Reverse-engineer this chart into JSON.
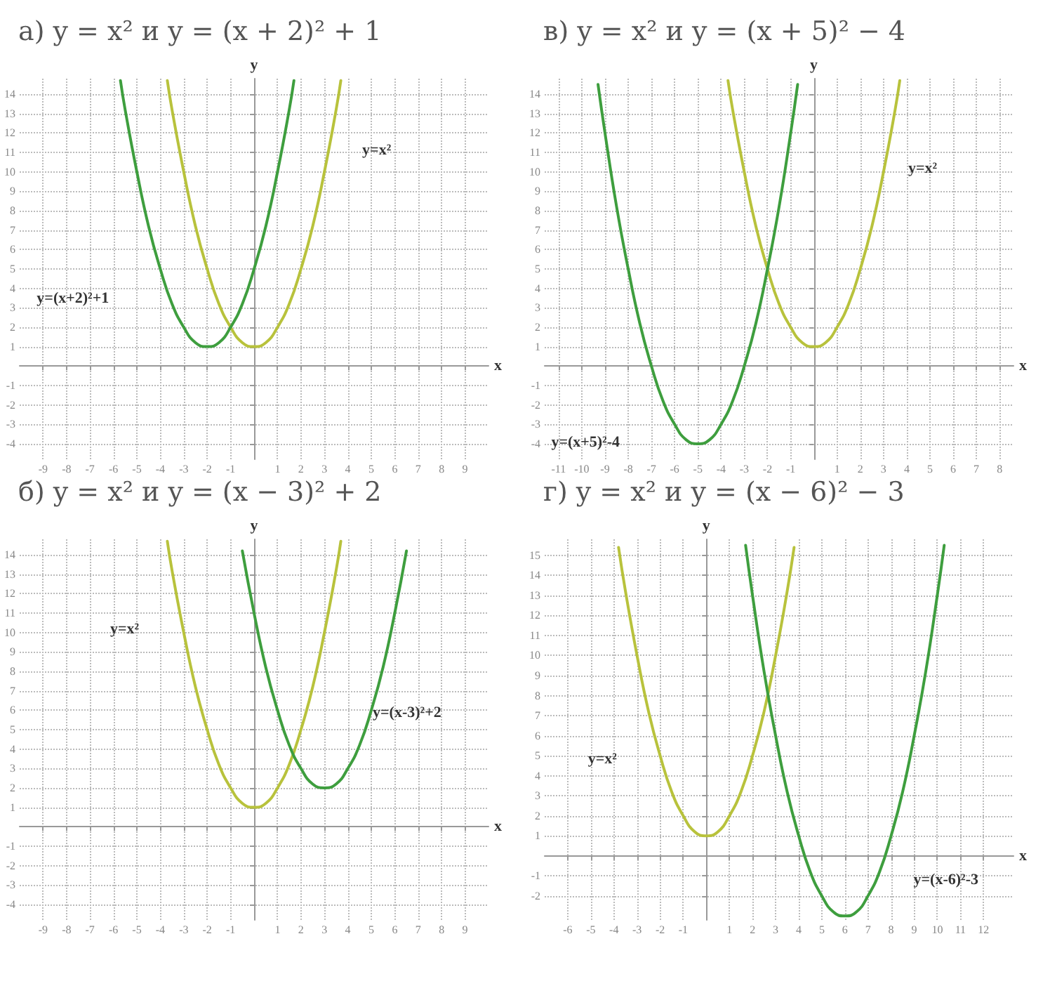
{
  "chart_data": [
    {
      "type": "line",
      "title": "а) y = x² и y = (x + 2)² + 1",
      "xlabel": "x",
      "ylabel": "y",
      "xlim": [
        -10,
        10
      ],
      "xticks": [
        -9,
        -8,
        -7,
        -6,
        -5,
        -4,
        -3,
        -2,
        -1,
        1,
        2,
        3,
        4,
        5,
        6,
        7,
        8,
        9
      ],
      "ylim": [
        -4.8,
        14.8
      ],
      "yticks": [
        -4,
        -3,
        -2,
        -1,
        1,
        2,
        3,
        4,
        5,
        6,
        7,
        8,
        9,
        10,
        11,
        12,
        13,
        14
      ],
      "grid": true,
      "marker": "none",
      "series": [
        {
          "color": "#b8c23c",
          "x": [
            -3.7,
            -3.5,
            -3,
            -2.5,
            -2,
            -1.5,
            -1,
            -0.5,
            0,
            0.5,
            1,
            1.5,
            2,
            2.5,
            3,
            3.5,
            3.7
          ],
          "values": [
            14.7,
            13.2,
            10,
            7.2,
            5,
            3.2,
            2,
            1.2,
            1,
            1.2,
            2,
            3.2,
            5,
            7.2,
            10,
            13.2,
            14.7
          ]
        },
        {
          "color": "#3e9e3e",
          "x": [
            -5.7,
            -5.5,
            -5,
            -4.5,
            -4,
            -3.5,
            -3,
            -2.5,
            -2,
            -1.5,
            -1,
            -0.5,
            0,
            0.5,
            1,
            1.5,
            1.7
          ],
          "values": [
            14.7,
            13.2,
            10,
            7.2,
            5,
            3.2,
            2,
            1.2,
            1,
            1.2,
            2,
            3.2,
            5,
            7.2,
            10,
            13.2,
            14.7
          ]
        }
      ],
      "annotations": [
        "y=x²",
        "y=(x+2)²+1"
      ]
    },
    {
      "type": "line",
      "title": "в) y = x² и y = (x + 5)² − 4",
      "xlabel": "x",
      "ylabel": "y",
      "xlim": [
        -11.6,
        8.6
      ],
      "xticks": [
        -11,
        -10,
        -9,
        -8,
        -7,
        -6,
        -5,
        -4,
        -3,
        -2,
        -1,
        1,
        2,
        3,
        4,
        5,
        6,
        7,
        8
      ],
      "ylim": [
        -4.8,
        14.8
      ],
      "yticks": [
        -4,
        -3,
        -2,
        -1,
        1,
        2,
        3,
        4,
        5,
        6,
        7,
        8,
        9,
        10,
        11,
        12,
        13,
        14
      ],
      "grid": true,
      "marker": "none",
      "series": [
        {
          "color": "#b8c23c",
          "x": [
            -3.7,
            -3.5,
            -3,
            -2.5,
            -2,
            -1.5,
            -1,
            -0.5,
            0,
            0.5,
            1,
            1.5,
            2,
            2.5,
            3,
            3.5,
            3.7
          ],
          "values": [
            14.7,
            13.2,
            10,
            7.2,
            5,
            3.2,
            2,
            1.2,
            1,
            1.2,
            2,
            3.2,
            5,
            7.2,
            10,
            13.2,
            14.7
          ]
        },
        {
          "color": "#3e9e3e",
          "x": [
            -9.3,
            -9,
            -8.5,
            -8,
            -7.5,
            -7,
            -6.5,
            -6,
            -5.5,
            -5,
            -4.5,
            -4,
            -3.5,
            -3,
            -2.5,
            -2,
            -1.5,
            -1,
            -0.7
          ],
          "values": [
            14.5,
            12,
            8.2,
            5,
            2.2,
            0,
            -1.8,
            -3,
            -3.8,
            -4,
            -3.8,
            -3,
            -1.8,
            0,
            2.2,
            5,
            8.2,
            12,
            14.5
          ]
        }
      ],
      "annotations": [
        "y=x²",
        "y=(x+5)²-4"
      ]
    },
    {
      "type": "line",
      "title": "б) y = x² и y = (x − 3)² + 2",
      "xlabel": "x",
      "ylabel": "y",
      "xlim": [
        -10,
        10
      ],
      "xticks": [
        -9,
        -8,
        -7,
        -6,
        -5,
        -4,
        -3,
        -2,
        -1,
        1,
        2,
        3,
        4,
        5,
        6,
        7,
        8,
        9
      ],
      "ylim": [
        -4.8,
        14.8
      ],
      "yticks": [
        -4,
        -3,
        -2,
        -1,
        1,
        2,
        3,
        4,
        5,
        6,
        7,
        8,
        9,
        10,
        11,
        12,
        13,
        14
      ],
      "grid": true,
      "marker": "none",
      "series": [
        {
          "color": "#b8c23c",
          "x": [
            -3.7,
            -3.5,
            -3,
            -2.5,
            -2,
            -1.5,
            -1,
            -0.5,
            0,
            0.5,
            1,
            1.5,
            2,
            2.5,
            3,
            3.5,
            3.7
          ],
          "values": [
            14.7,
            13.2,
            10,
            7.2,
            5,
            3.2,
            2,
            1.2,
            1,
            1.2,
            2,
            3.2,
            5,
            7.2,
            10,
            13.2,
            14.7
          ]
        },
        {
          "color": "#3e9e3e",
          "x": [
            -0.5,
            0,
            0.5,
            1,
            1.5,
            2,
            2.5,
            3,
            3.5,
            4,
            4.5,
            5,
            5.5,
            6,
            6.5
          ],
          "values": [
            14.2,
            11,
            8.2,
            6,
            4.2,
            3,
            2.2,
            2,
            2.2,
            3,
            4.2,
            6,
            8.2,
            11,
            14.2
          ]
        }
      ],
      "annotations": [
        "y=x²",
        "y=(x-3)²+2"
      ]
    },
    {
      "type": "line",
      "title": "г) y = x² и y = (x − 6)² − 3",
      "xlabel": "x",
      "ylabel": "y",
      "xlim": [
        -7,
        13.3
      ],
      "xticks": [
        -6,
        -5,
        -4,
        -3,
        -2,
        -1,
        1,
        2,
        3,
        4,
        5,
        6,
        7,
        8,
        9,
        10,
        11,
        12
      ],
      "ylim": [
        -3.2,
        15.8
      ],
      "yticks": [
        -2,
        -1,
        1,
        2,
        3,
        4,
        5,
        6,
        7,
        8,
        9,
        10,
        11,
        12,
        13,
        14,
        15
      ],
      "grid": true,
      "marker": "none",
      "series": [
        {
          "color": "#b8c23c",
          "x": [
            -3.8,
            -3.5,
            -3,
            -2.5,
            -2,
            -1.5,
            -1,
            -0.5,
            0,
            0.5,
            1,
            1.5,
            2,
            2.5,
            3,
            3.5,
            3.8
          ],
          "values": [
            15.4,
            13.2,
            10,
            7.2,
            5,
            3.2,
            2,
            1.2,
            1,
            1.2,
            2,
            3.2,
            5,
            7.2,
            10,
            13.2,
            15.4
          ]
        },
        {
          "color": "#3e9e3e",
          "x": [
            1.7,
            2,
            2.5,
            3,
            3.5,
            4,
            4.5,
            5,
            5.5,
            6,
            6.5,
            7,
            7.5,
            8,
            8.5,
            9,
            9.5,
            10,
            10.3
          ],
          "values": [
            15.5,
            13,
            9.2,
            6,
            3.2,
            1,
            -0.8,
            -2,
            -2.8,
            -3,
            -2.8,
            -2,
            -0.8,
            1,
            3.2,
            6,
            9.2,
            13,
            15.5
          ]
        }
      ],
      "annotations": [
        "y=x²",
        "y=(x-6)²-3"
      ]
    }
  ]
}
